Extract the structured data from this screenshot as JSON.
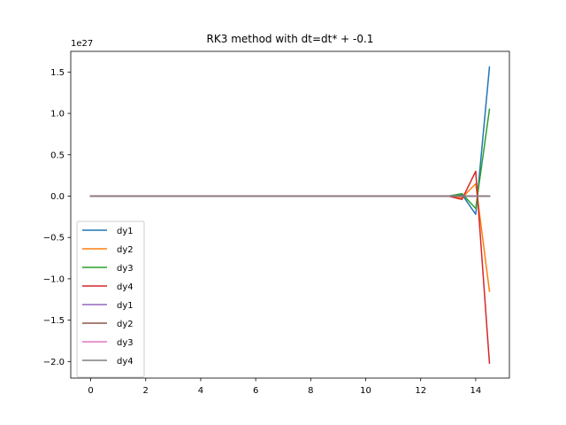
{
  "chart_data": {
    "type": "line",
    "title": "RK3 method with dt=dt* + -0.1",
    "xlabel": "",
    "ylabel": "",
    "offset_label": "1e27",
    "xlim": [
      -0.725,
      15.225
    ],
    "ylim": [
      -2.2,
      1.75
    ],
    "xticks": [
      0,
      2,
      4,
      6,
      8,
      10,
      12,
      14
    ],
    "xtick_labels": [
      "0",
      "2",
      "4",
      "6",
      "8",
      "10",
      "12",
      "14"
    ],
    "yticks": [
      -2.0,
      -1.5,
      -1.0,
      -0.5,
      0.0,
      0.5,
      1.0,
      1.5
    ],
    "ytick_labels": [
      "−2.0",
      "−1.5",
      "−1.0",
      "−0.5",
      "0.0",
      "0.5",
      "1.0",
      "1.5"
    ],
    "grid": false,
    "legend_position": "lower-left",
    "series": [
      {
        "name": "dy1",
        "color": "#1f77b4",
        "x": [
          0,
          13.0,
          13.5,
          14.0,
          14.5
        ],
        "y": [
          0,
          0,
          0.02,
          -0.22,
          1.56
        ]
      },
      {
        "name": "dy2",
        "color": "#ff7f0e",
        "x": [
          0,
          13.0,
          13.5,
          14.0,
          14.5
        ],
        "y": [
          0,
          0,
          -0.02,
          0.15,
          -1.15
        ]
      },
      {
        "name": "dy3",
        "color": "#2ca02c",
        "x": [
          0,
          13.0,
          13.5,
          14.0,
          14.5
        ],
        "y": [
          0,
          0,
          0.03,
          -0.15,
          1.05
        ]
      },
      {
        "name": "dy4",
        "color": "#d62728",
        "x": [
          0,
          13.0,
          13.5,
          14.0,
          14.5
        ],
        "y": [
          0,
          0,
          -0.04,
          0.3,
          -2.02
        ]
      },
      {
        "name": "dy1",
        "color": "#9467bd",
        "x": [
          0,
          14.5
        ],
        "y": [
          0,
          0
        ]
      },
      {
        "name": "dy2",
        "color": "#8c564b",
        "x": [
          0,
          14.5
        ],
        "y": [
          0,
          0
        ]
      },
      {
        "name": "dy3",
        "color": "#e377c2",
        "x": [
          0,
          14.5
        ],
        "y": [
          0,
          0
        ]
      },
      {
        "name": "dy4",
        "color": "#7f7f7f",
        "x": [
          0,
          14.5
        ],
        "y": [
          0,
          0
        ]
      }
    ]
  }
}
